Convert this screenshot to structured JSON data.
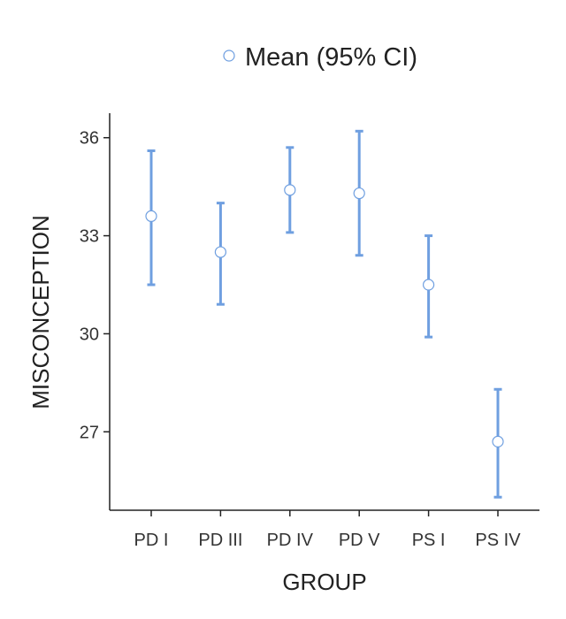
{
  "chart_data": {
    "type": "errorbar",
    "legend": {
      "label": "Mean (95% CI)",
      "placement": "top-center"
    },
    "xlabel": "GROUP",
    "ylabel": "MISCONCEPTION",
    "categories": [
      "PD I",
      "PD III",
      "PD IV",
      "PD V",
      "PS I",
      "PS IV"
    ],
    "series": [
      {
        "name": "Mean (95% CI)",
        "mean": [
          33.6,
          32.5,
          34.4,
          34.3,
          31.5,
          26.7
        ],
        "ci_low": [
          31.5,
          30.9,
          33.1,
          32.4,
          29.9,
          25.0
        ],
        "ci_high": [
          35.6,
          34.0,
          35.7,
          36.2,
          33.0,
          28.3
        ]
      }
    ],
    "yticks": [
      27,
      30,
      33,
      36
    ],
    "ylim": [
      24.6,
      36.75
    ],
    "grid": false,
    "colors": {
      "bar": "#6f9fe0",
      "marker_fill": "#ffffff",
      "marker_stroke": "#6f9fe0",
      "axis": "#222222"
    }
  }
}
